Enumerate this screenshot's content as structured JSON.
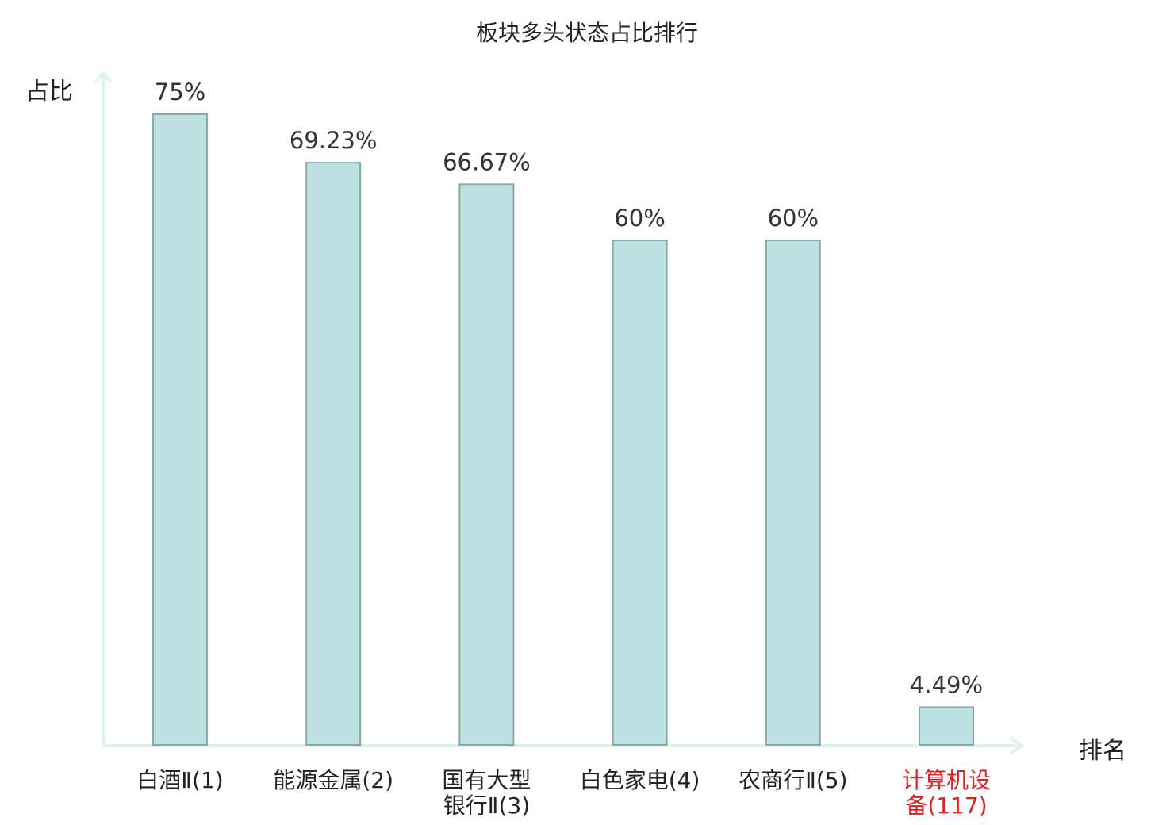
{
  "chart_data": {
    "type": "bar",
    "title": "板块多头状态占比排行",
    "ylabel": "占比",
    "xlabel": "排名",
    "ylim": [
      0,
      75
    ],
    "grid": false,
    "categories": [
      [
        "白酒Ⅱ(1)"
      ],
      [
        "能源金属(2)"
      ],
      [
        "国有大型",
        "银行Ⅱ(3)"
      ],
      [
        "白色家电(4)"
      ],
      [
        "农商行Ⅱ(5)"
      ],
      [
        "计算机设",
        "备(117)"
      ]
    ],
    "values": [
      75,
      69.23,
      66.67,
      60,
      60,
      4.49
    ],
    "value_labels": [
      "75%",
      "69.23%",
      "66.67%",
      "60%",
      "60%",
      "4.49%"
    ],
    "highlight_index": 5
  },
  "colors": {
    "bar_fill": "#bde0e3",
    "bar_stroke": "#8aa7aa",
    "axis": "#dff2f0",
    "highlight_text": "#e02020",
    "text": "#222222",
    "value_text": "#333333"
  }
}
